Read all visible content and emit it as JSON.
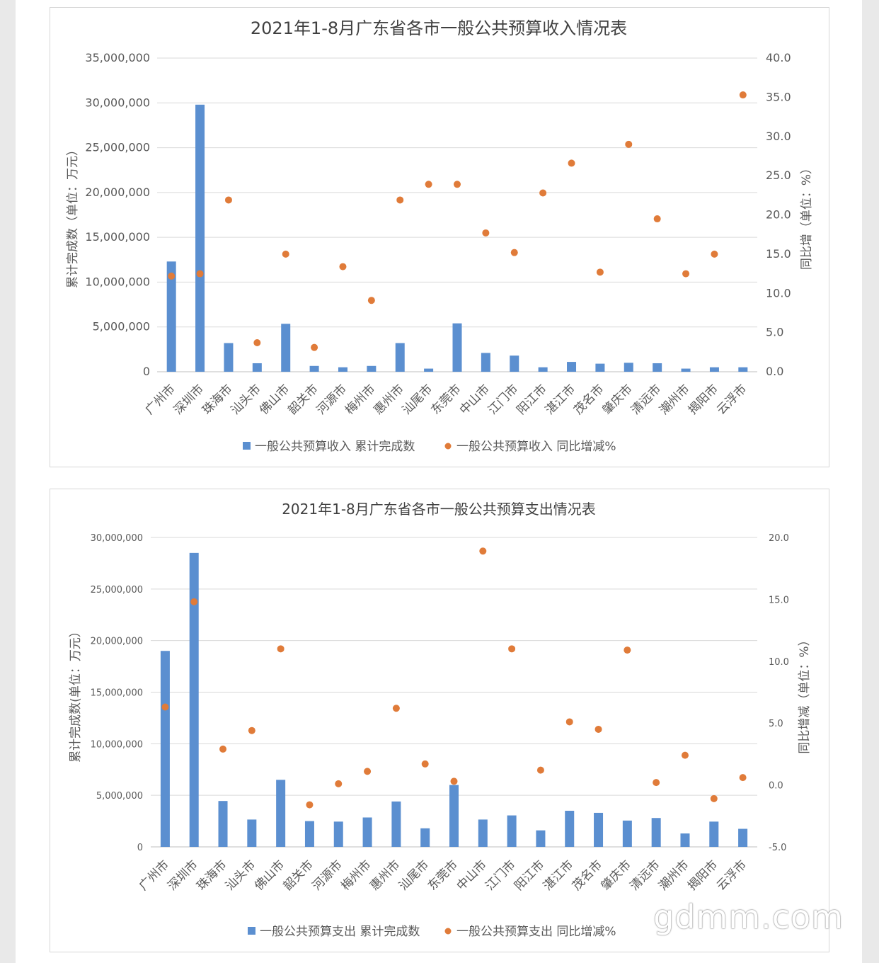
{
  "watermark": "gdmm.com",
  "chart_data": [
    {
      "type": "bar",
      "title": "2021年1-8月广东省各市一般公共预算收入情况表",
      "ylabel": "累计完成数（单位：万元）",
      "y2label": "同比增（单位：%）",
      "ylim": [
        0,
        35000000
      ],
      "y2lim": [
        0,
        40
      ],
      "y_ticks": [
        "35,000,000",
        "30,000,000",
        "25,000,000",
        "20,000,000",
        "15,000,000",
        "10,000,000",
        "5,000,000",
        "0"
      ],
      "y2_ticks": [
        "40.0",
        "35.0",
        "30.0",
        "25.0",
        "20.0",
        "15.0",
        "10.0",
        "5.0",
        "0.0"
      ],
      "grid": true,
      "legend_position": "bottom",
      "categories": [
        "广州市",
        "深圳市",
        "珠海市",
        "汕头市",
        "佛山市",
        "韶关市",
        "河源市",
        "梅州市",
        "惠州市",
        "汕尾市",
        "东莞市",
        "中山市",
        "江门市",
        "阳江市",
        "湛江市",
        "茂名市",
        "肇庆市",
        "清远市",
        "潮州市",
        "揭阳市",
        "云浮市"
      ],
      "series": [
        {
          "name": "一般公共预算收入 累计完成数",
          "kind": "bar",
          "axis": "left",
          "color": "#5b8fd0",
          "values": [
            12300000,
            29800000,
            3200000,
            950000,
            5350000,
            650000,
            500000,
            650000,
            3200000,
            350000,
            5400000,
            2100000,
            1800000,
            500000,
            1100000,
            900000,
            1000000,
            950000,
            350000,
            500000,
            500000
          ]
        },
        {
          "name": "一般公共预算收入 同比增减%",
          "kind": "scatter",
          "axis": "right",
          "color": "#e07b39",
          "values": [
            12.2,
            12.5,
            21.9,
            3.7,
            15.0,
            3.1,
            13.4,
            9.1,
            21.9,
            23.9,
            23.9,
            17.7,
            15.2,
            22.8,
            26.6,
            12.7,
            29.0,
            19.5,
            12.5,
            15.0,
            35.3
          ]
        }
      ]
    },
    {
      "type": "bar",
      "title": "2021年1-8月广东省各市一般公共预算支出情况表",
      "ylabel": "累计完成数(单位：万元）",
      "y2label": "同比增减（单位：%）",
      "ylim": [
        0,
        30000000
      ],
      "y2lim": [
        -5,
        20
      ],
      "y_ticks": [
        "30,000,000",
        "25,000,000",
        "20,000,000",
        "15,000,000",
        "10,000,000",
        "5,000,000",
        "0"
      ],
      "y2_ticks": [
        "20.0",
        "15.0",
        "10.0",
        "5.0",
        "0.0",
        "-5.0"
      ],
      "grid": true,
      "legend_position": "bottom",
      "categories": [
        "广州市",
        "深圳市",
        "珠海市",
        "汕头市",
        "佛山市",
        "韶关市",
        "河源市",
        "梅州市",
        "惠州市",
        "汕尾市",
        "东莞市",
        "中山市",
        "江门市",
        "阳江市",
        "湛江市",
        "茂名市",
        "肇庆市",
        "清远市",
        "潮州市",
        "揭阳市",
        "云浮市"
      ],
      "series": [
        {
          "name": "一般公共预算支出 累计完成数",
          "kind": "bar",
          "axis": "left",
          "color": "#5b8fd0",
          "values": [
            19000000,
            28500000,
            4450000,
            2650000,
            6500000,
            2500000,
            2450000,
            2850000,
            4400000,
            1800000,
            6000000,
            2650000,
            3050000,
            1600000,
            3500000,
            3300000,
            2550000,
            2800000,
            1300000,
            2450000,
            1750000
          ]
        },
        {
          "name": "一般公共预算支出 同比增减%",
          "kind": "scatter",
          "axis": "right",
          "color": "#e07b39",
          "values": [
            6.3,
            14.8,
            2.9,
            4.4,
            11.0,
            -1.6,
            0.1,
            1.1,
            6.2,
            1.7,
            0.3,
            18.9,
            11.0,
            1.2,
            5.1,
            4.5,
            10.9,
            0.2,
            2.4,
            -1.1,
            0.6
          ]
        }
      ]
    }
  ]
}
